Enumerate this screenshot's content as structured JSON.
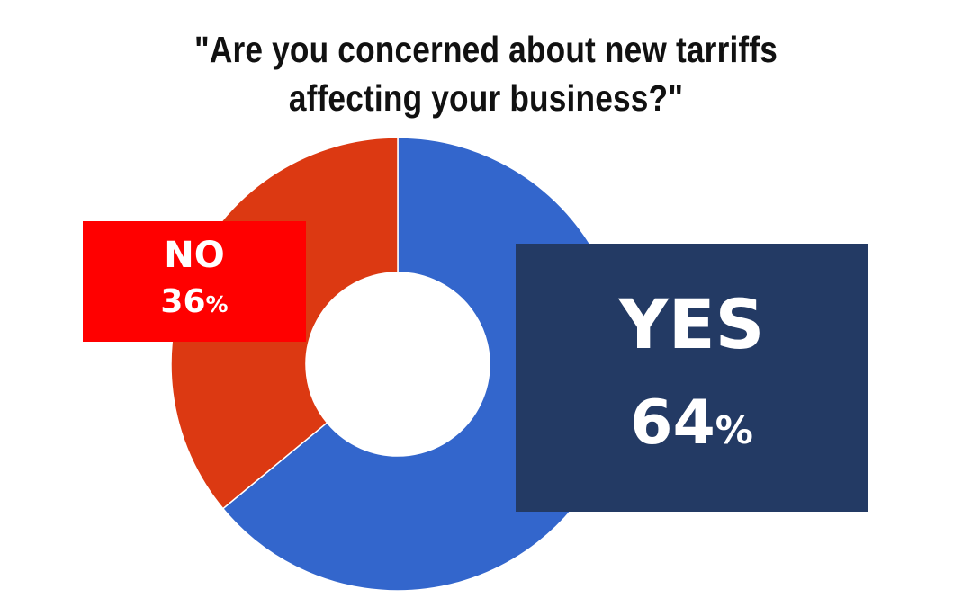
{
  "chart_data": {
    "type": "pie",
    "title_lines": [
      "\"Are you concerned about new tarriffs",
      "affecting your business?\""
    ],
    "categories": [
      "YES",
      "NO"
    ],
    "values": [
      64,
      36
    ],
    "value_labels": [
      "64",
      "36"
    ],
    "unit": "%",
    "colors": {
      "YES": "#3366cc",
      "NO": "#dc3912",
      "YES_label_box": "#233a64",
      "NO_label_box": "#ff0000"
    }
  }
}
